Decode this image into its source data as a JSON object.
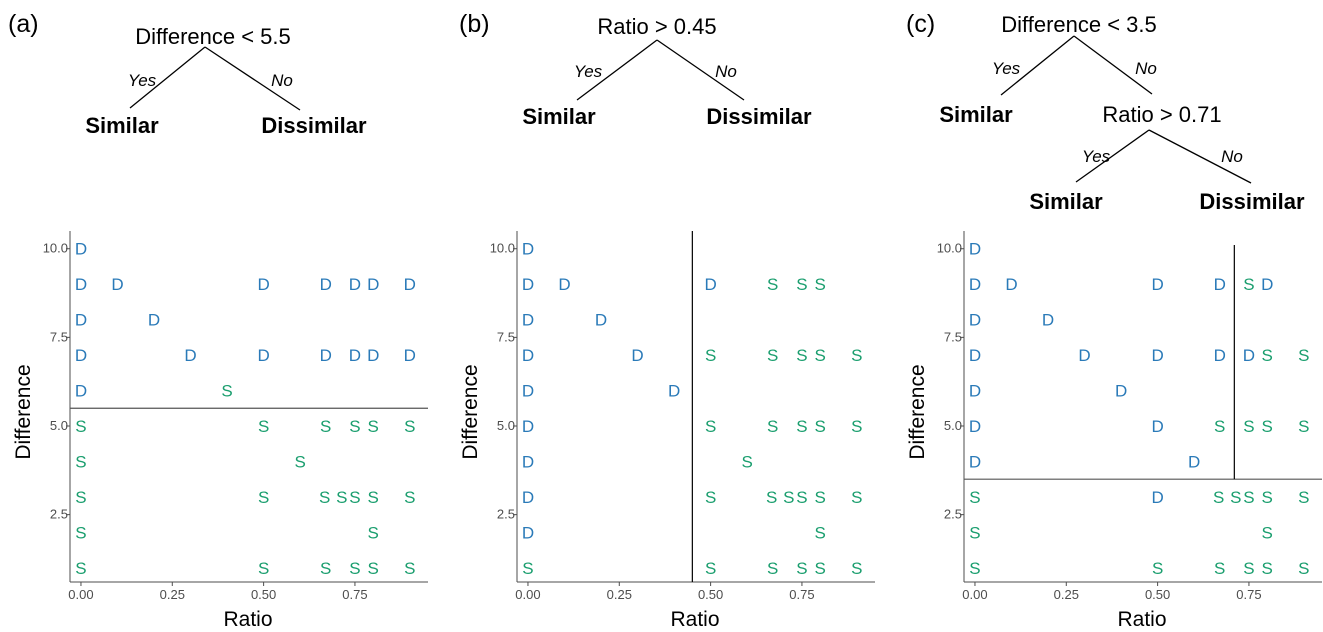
{
  "colors": {
    "D": "#2a7ab8",
    "S": "#1a9e6e",
    "axis": "#4d4d4d",
    "line": "#000000"
  },
  "chart_data": [
    {
      "type": "scatter",
      "panel_label": "(a)",
      "xlabel": "Ratio",
      "ylabel": "Difference",
      "xlim": [
        -0.03,
        0.95
      ],
      "ylim": [
        0.6,
        10.5
      ],
      "xticks": [
        0.0,
        0.25,
        0.5,
        0.75
      ],
      "xtick_labels": [
        "0.00",
        "0.25",
        "0.50",
        "0.75"
      ],
      "yticks": [
        2.5,
        5.0,
        7.5,
        10.0
      ],
      "ytick_labels": [
        "2.5",
        "5.0",
        "7.5",
        "10.0"
      ],
      "grid": false,
      "split_lines": [
        {
          "orientation": "horizontal",
          "value": 5.5
        }
      ],
      "tree": {
        "root": "Difference < 5.5",
        "yes_label": "Yes",
        "no_label": "No",
        "yes": "Similar",
        "no": "Dissimilar"
      },
      "points": [
        {
          "x": 0,
          "y": 10,
          "label": "D"
        },
        {
          "x": 0,
          "y": 9,
          "label": "D"
        },
        {
          "x": 0.1,
          "y": 9,
          "label": "D"
        },
        {
          "x": 0.5,
          "y": 9,
          "label": "D"
        },
        {
          "x": 0.67,
          "y": 9,
          "label": "D"
        },
        {
          "x": 0.75,
          "y": 9,
          "label": "D"
        },
        {
          "x": 0.8,
          "y": 9,
          "label": "D"
        },
        {
          "x": 0.9,
          "y": 9,
          "label": "D"
        },
        {
          "x": 0,
          "y": 8,
          "label": "D"
        },
        {
          "x": 0.2,
          "y": 8,
          "label": "D"
        },
        {
          "x": 0,
          "y": 7,
          "label": "D"
        },
        {
          "x": 0.3,
          "y": 7,
          "label": "D"
        },
        {
          "x": 0.5,
          "y": 7,
          "label": "D"
        },
        {
          "x": 0.67,
          "y": 7,
          "label": "D"
        },
        {
          "x": 0.75,
          "y": 7,
          "label": "D"
        },
        {
          "x": 0.8,
          "y": 7,
          "label": "D"
        },
        {
          "x": 0.9,
          "y": 7,
          "label": "D"
        },
        {
          "x": 0,
          "y": 6,
          "label": "D"
        },
        {
          "x": 0.4,
          "y": 6,
          "label": "S"
        },
        {
          "x": 0,
          "y": 5,
          "label": "S"
        },
        {
          "x": 0.5,
          "y": 5,
          "label": "S"
        },
        {
          "x": 0.67,
          "y": 5,
          "label": "S"
        },
        {
          "x": 0.75,
          "y": 5,
          "label": "S"
        },
        {
          "x": 0.8,
          "y": 5,
          "label": "S"
        },
        {
          "x": 0.9,
          "y": 5,
          "label": "S"
        },
        {
          "x": 0,
          "y": 4,
          "label": "S"
        },
        {
          "x": 0.6,
          "y": 4,
          "label": "S"
        },
        {
          "x": 0,
          "y": 3,
          "label": "S"
        },
        {
          "x": 0.5,
          "y": 3,
          "label": "S"
        },
        {
          "x": 0.667,
          "y": 3,
          "label": "S"
        },
        {
          "x": 0.714,
          "y": 3,
          "label": "S"
        },
        {
          "x": 0.75,
          "y": 3,
          "label": "S"
        },
        {
          "x": 0.8,
          "y": 3,
          "label": "S"
        },
        {
          "x": 0.9,
          "y": 3,
          "label": "S"
        },
        {
          "x": 0,
          "y": 2,
          "label": "S"
        },
        {
          "x": 0.8,
          "y": 2,
          "label": "S"
        },
        {
          "x": 0,
          "y": 1,
          "label": "S"
        },
        {
          "x": 0.5,
          "y": 1,
          "label": "S"
        },
        {
          "x": 0.67,
          "y": 1,
          "label": "S"
        },
        {
          "x": 0.75,
          "y": 1,
          "label": "S"
        },
        {
          "x": 0.8,
          "y": 1,
          "label": "S"
        },
        {
          "x": 0.9,
          "y": 1,
          "label": "S"
        }
      ]
    },
    {
      "type": "scatter",
      "panel_label": "(b)",
      "xlabel": "Ratio",
      "ylabel": "Difference",
      "xlim": [
        -0.03,
        0.95
      ],
      "ylim": [
        0.6,
        10.5
      ],
      "xticks": [
        0.0,
        0.25,
        0.5,
        0.75
      ],
      "xtick_labels": [
        "0.00",
        "0.25",
        "0.50",
        "0.75"
      ],
      "yticks": [
        2.5,
        5.0,
        7.5,
        10.0
      ],
      "ytick_labels": [
        "2.5",
        "5.0",
        "7.5",
        "10.0"
      ],
      "grid": false,
      "split_lines": [
        {
          "orientation": "vertical",
          "value": 0.45
        }
      ],
      "tree": {
        "root": "Ratio > 0.45",
        "yes_label": "Yes",
        "no_label": "No",
        "yes": "Similar",
        "no": "Dissimilar"
      },
      "points": [
        {
          "x": 0,
          "y": 10,
          "label": "D"
        },
        {
          "x": 0,
          "y": 9,
          "label": "D"
        },
        {
          "x": 0.1,
          "y": 9,
          "label": "D"
        },
        {
          "x": 0.5,
          "y": 9,
          "label": "D"
        },
        {
          "x": 0.67,
          "y": 9,
          "label": "S"
        },
        {
          "x": 0.75,
          "y": 9,
          "label": "S"
        },
        {
          "x": 0.8,
          "y": 9,
          "label": "S"
        },
        {
          "x": 0,
          "y": 8,
          "label": "D"
        },
        {
          "x": 0.2,
          "y": 8,
          "label": "D"
        },
        {
          "x": 0,
          "y": 7,
          "label": "D"
        },
        {
          "x": 0.3,
          "y": 7,
          "label": "D"
        },
        {
          "x": 0.5,
          "y": 7,
          "label": "S"
        },
        {
          "x": 0.67,
          "y": 7,
          "label": "S"
        },
        {
          "x": 0.75,
          "y": 7,
          "label": "S"
        },
        {
          "x": 0.8,
          "y": 7,
          "label": "S"
        },
        {
          "x": 0.9,
          "y": 7,
          "label": "S"
        },
        {
          "x": 0,
          "y": 6,
          "label": "D"
        },
        {
          "x": 0.4,
          "y": 6,
          "label": "D"
        },
        {
          "x": 0,
          "y": 5,
          "label": "D"
        },
        {
          "x": 0.5,
          "y": 5,
          "label": "S"
        },
        {
          "x": 0.67,
          "y": 5,
          "label": "S"
        },
        {
          "x": 0.75,
          "y": 5,
          "label": "S"
        },
        {
          "x": 0.8,
          "y": 5,
          "label": "S"
        },
        {
          "x": 0.9,
          "y": 5,
          "label": "S"
        },
        {
          "x": 0,
          "y": 4,
          "label": "D"
        },
        {
          "x": 0.6,
          "y": 4,
          "label": "S"
        },
        {
          "x": 0,
          "y": 3,
          "label": "D"
        },
        {
          "x": 0.5,
          "y": 3,
          "label": "S"
        },
        {
          "x": 0.667,
          "y": 3,
          "label": "S"
        },
        {
          "x": 0.714,
          "y": 3,
          "label": "S"
        },
        {
          "x": 0.75,
          "y": 3,
          "label": "S"
        },
        {
          "x": 0.8,
          "y": 3,
          "label": "S"
        },
        {
          "x": 0.9,
          "y": 3,
          "label": "S"
        },
        {
          "x": 0,
          "y": 2,
          "label": "D"
        },
        {
          "x": 0.8,
          "y": 2,
          "label": "S"
        },
        {
          "x": 0,
          "y": 1,
          "label": "S"
        },
        {
          "x": 0.5,
          "y": 1,
          "label": "S"
        },
        {
          "x": 0.67,
          "y": 1,
          "label": "S"
        },
        {
          "x": 0.75,
          "y": 1,
          "label": "S"
        },
        {
          "x": 0.8,
          "y": 1,
          "label": "S"
        },
        {
          "x": 0.9,
          "y": 1,
          "label": "S"
        }
      ]
    },
    {
      "type": "scatter",
      "panel_label": "(c)",
      "xlabel": "Ratio",
      "ylabel": "Difference",
      "xlim": [
        -0.03,
        0.95
      ],
      "ylim": [
        0.6,
        10.5
      ],
      "xticks": [
        0.0,
        0.25,
        0.5,
        0.75
      ],
      "xtick_labels": [
        "0.00",
        "0.25",
        "0.50",
        "0.75"
      ],
      "yticks": [
        2.5,
        5.0,
        7.5,
        10.0
      ],
      "ytick_labels": [
        "2.5",
        "5.0",
        "7.5",
        "10.0"
      ],
      "grid": false,
      "split_lines": [
        {
          "orientation": "horizontal",
          "value": 3.5
        },
        {
          "orientation": "vertical",
          "value": 0.71,
          "from_y": 3.5
        }
      ],
      "tree": {
        "root": "Difference < 3.5",
        "yes_label": "Yes",
        "no_label": "No",
        "yes": "Similar",
        "child": {
          "root": "Ratio > 0.71",
          "yes_label": "Yes",
          "no_label": "No",
          "yes": "Similar",
          "no": "Dissimilar"
        }
      },
      "points": [
        {
          "x": 0,
          "y": 10,
          "label": "D"
        },
        {
          "x": 0,
          "y": 9,
          "label": "D"
        },
        {
          "x": 0.1,
          "y": 9,
          "label": "D"
        },
        {
          "x": 0.5,
          "y": 9,
          "label": "D"
        },
        {
          "x": 0.67,
          "y": 9,
          "label": "D"
        },
        {
          "x": 0.75,
          "y": 9,
          "label": "S"
        },
        {
          "x": 0.8,
          "y": 9,
          "label": "D"
        },
        {
          "x": 0,
          "y": 8,
          "label": "D"
        },
        {
          "x": 0.2,
          "y": 8,
          "label": "D"
        },
        {
          "x": 0,
          "y": 7,
          "label": "D"
        },
        {
          "x": 0.3,
          "y": 7,
          "label": "D"
        },
        {
          "x": 0.5,
          "y": 7,
          "label": "D"
        },
        {
          "x": 0.67,
          "y": 7,
          "label": "D"
        },
        {
          "x": 0.75,
          "y": 7,
          "label": "D"
        },
        {
          "x": 0.8,
          "y": 7,
          "label": "S"
        },
        {
          "x": 0.9,
          "y": 7,
          "label": "S"
        },
        {
          "x": 0,
          "y": 6,
          "label": "D"
        },
        {
          "x": 0.4,
          "y": 6,
          "label": "D"
        },
        {
          "x": 0,
          "y": 5,
          "label": "D"
        },
        {
          "x": 0.5,
          "y": 5,
          "label": "D"
        },
        {
          "x": 0.67,
          "y": 5,
          "label": "S"
        },
        {
          "x": 0.75,
          "y": 5,
          "label": "S"
        },
        {
          "x": 0.8,
          "y": 5,
          "label": "S"
        },
        {
          "x": 0.9,
          "y": 5,
          "label": "S"
        },
        {
          "x": 0,
          "y": 4,
          "label": "D"
        },
        {
          "x": 0.6,
          "y": 4,
          "label": "D"
        },
        {
          "x": 0,
          "y": 3,
          "label": "S"
        },
        {
          "x": 0.5,
          "y": 3,
          "label": "D"
        },
        {
          "x": 0.667,
          "y": 3,
          "label": "S"
        },
        {
          "x": 0.714,
          "y": 3,
          "label": "S"
        },
        {
          "x": 0.75,
          "y": 3,
          "label": "S"
        },
        {
          "x": 0.8,
          "y": 3,
          "label": "S"
        },
        {
          "x": 0.9,
          "y": 3,
          "label": "S"
        },
        {
          "x": 0,
          "y": 2,
          "label": "S"
        },
        {
          "x": 0.8,
          "y": 2,
          "label": "S"
        },
        {
          "x": 0,
          "y": 1,
          "label": "S"
        },
        {
          "x": 0.5,
          "y": 1,
          "label": "S"
        },
        {
          "x": 0.67,
          "y": 1,
          "label": "S"
        },
        {
          "x": 0.75,
          "y": 1,
          "label": "S"
        },
        {
          "x": 0.8,
          "y": 1,
          "label": "S"
        },
        {
          "x": 0.9,
          "y": 1,
          "label": "S"
        }
      ]
    }
  ]
}
